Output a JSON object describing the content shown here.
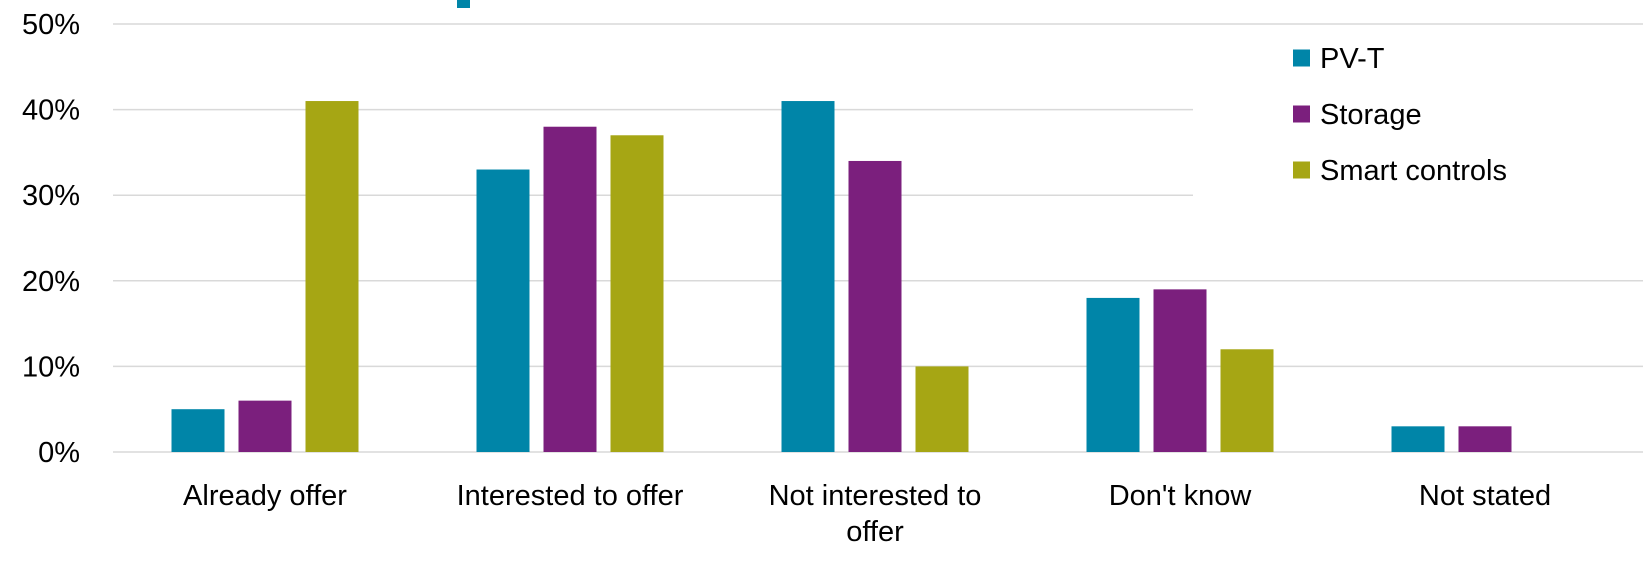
{
  "chart_data": {
    "type": "bar",
    "categories": [
      [
        "Already offer"
      ],
      [
        "Interested to offer"
      ],
      [
        "Not interested to",
        "offer"
      ],
      [
        "Don't know"
      ],
      [
        "Not stated"
      ]
    ],
    "series": [
      {
        "name": "PV-T",
        "color": "#0085a8",
        "values": [
          5,
          33,
          41,
          18,
          3
        ]
      },
      {
        "name": "Storage",
        "color": "#7b1f7d",
        "values": [
          6,
          38,
          34,
          19,
          3
        ]
      },
      {
        "name": "Smart controls",
        "color": "#a6a614",
        "values": [
          41,
          37,
          10,
          12,
          0
        ]
      }
    ],
    "ylim": [
      0,
      50
    ],
    "yticks": [
      "0%",
      "10%",
      "20%",
      "30%",
      "40%",
      "50%"
    ],
    "grid": true,
    "legend_position": "top-right",
    "title_accent_color": "#0085a8"
  }
}
